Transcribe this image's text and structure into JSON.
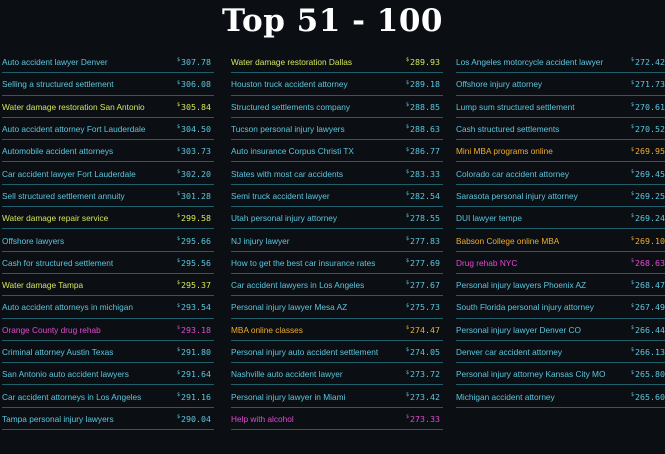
{
  "title": "Top 51 - 100",
  "colors": {
    "cyan": "#5bc7e0",
    "yellow": "#d6e65a",
    "orange": "#f0ad2b",
    "pink": "#e24ad3"
  },
  "columns": [
    [
      {
        "keyword": "Auto accident lawyer Denver",
        "price": "307.78",
        "color": "cyan"
      },
      {
        "keyword": "Selling a structured settlement",
        "price": "306.08",
        "color": "cyan"
      },
      {
        "keyword": "Water damage restoration San Antonio",
        "price": "305.84",
        "color": "yellow"
      },
      {
        "keyword": "Auto accident attorney Fort Lauderdale",
        "price": "304.50",
        "color": "cyan"
      },
      {
        "keyword": "Automobile accident attorneys",
        "price": "303.73",
        "color": "cyan"
      },
      {
        "keyword": "Car accident lawyer Fort Lauderdale",
        "price": "302.20",
        "color": "cyan"
      },
      {
        "keyword": "Sell structured settlement annuity",
        "price": "301.28",
        "color": "cyan"
      },
      {
        "keyword": "Water damage repair service",
        "price": "299.58",
        "color": "yellow"
      },
      {
        "keyword": "Offshore lawyers",
        "price": "295.66",
        "color": "cyan"
      },
      {
        "keyword": "Cash for structured settlement",
        "price": "295.56",
        "color": "cyan"
      },
      {
        "keyword": "Water damage Tampa",
        "price": "295.37",
        "color": "yellow"
      },
      {
        "keyword": "Auto accident attorneys in michigan",
        "price": "293.54",
        "color": "cyan"
      },
      {
        "keyword": "Orange County drug rehab",
        "price": "293.18",
        "color": "pink"
      },
      {
        "keyword": "Criminal attorney Austin Texas",
        "price": "291.80",
        "color": "cyan"
      },
      {
        "keyword": "San Antonio auto accident lawyers",
        "price": "291.64",
        "color": "cyan"
      },
      {
        "keyword": "Car accident attorneys in Los Angeles",
        "price": "291.16",
        "color": "cyan"
      },
      {
        "keyword": "Tampa personal injury lawyers",
        "price": "290.04",
        "color": "cyan"
      }
    ],
    [
      {
        "keyword": "Water damage restoration Dallas",
        "price": "289.93",
        "color": "yellow"
      },
      {
        "keyword": "Houston truck accident attorney",
        "price": "289.18",
        "color": "cyan"
      },
      {
        "keyword": "Structured settlements company",
        "price": "288.85",
        "color": "cyan"
      },
      {
        "keyword": "Tucson personal injury lawyers",
        "price": "288.63",
        "color": "cyan"
      },
      {
        "keyword": "Auto insurance Corpus Christi TX",
        "price": "286.77",
        "color": "cyan"
      },
      {
        "keyword": "States with most car accidents",
        "price": "283.33",
        "color": "cyan"
      },
      {
        "keyword": "Semi truck accident lawyer",
        "price": "282.54",
        "color": "cyan"
      },
      {
        "keyword": "Utah personal injury attorney",
        "price": "278.55",
        "color": "cyan"
      },
      {
        "keyword": "NJ injury lawyer",
        "price": "277.83",
        "color": "cyan"
      },
      {
        "keyword": "How to get the best car insurance rates",
        "price": "277.69",
        "color": "cyan"
      },
      {
        "keyword": "Car accident lawyers in Los Angeles",
        "price": "277.67",
        "color": "cyan"
      },
      {
        "keyword": "Personal injury lawyer Mesa AZ",
        "price": "275.73",
        "color": "cyan"
      },
      {
        "keyword": "MBA online classes",
        "price": "274.47",
        "color": "orange"
      },
      {
        "keyword": "Personal injury auto accident settlement",
        "price": "274.05",
        "color": "cyan"
      },
      {
        "keyword": "Nashville auto accident lawyer",
        "price": "273.72",
        "color": "cyan"
      },
      {
        "keyword": "Personal injury lawyer in Miami",
        "price": "273.42",
        "color": "cyan"
      },
      {
        "keyword": "Help with alcohol",
        "price": "273.33",
        "color": "pink"
      }
    ],
    [
      {
        "keyword": "Los Angeles motorcycle accident lawyer",
        "price": "272.42",
        "color": "cyan"
      },
      {
        "keyword": "Offshore injury attorney",
        "price": "271.73",
        "color": "cyan"
      },
      {
        "keyword": "Lump sum structured settlement",
        "price": "270.61",
        "color": "cyan"
      },
      {
        "keyword": "Cash structured settlements",
        "price": "270.52",
        "color": "cyan"
      },
      {
        "keyword": "Mini MBA programs online",
        "price": "269.95",
        "color": "orange"
      },
      {
        "keyword": "Colorado car accident attorney",
        "price": "269.45",
        "color": "cyan"
      },
      {
        "keyword": "Sarasota personal injury attorney",
        "price": "269.25",
        "color": "cyan"
      },
      {
        "keyword": "DUI lawyer tempe",
        "price": "269.24",
        "color": "cyan"
      },
      {
        "keyword": "Babson College online MBA",
        "price": "269.10",
        "color": "orange"
      },
      {
        "keyword": "Drug rehab NYC",
        "price": "268.63",
        "color": "pink"
      },
      {
        "keyword": "Personal injury lawyers Phoenix AZ",
        "price": "268.47",
        "color": "cyan"
      },
      {
        "keyword": "South Florida personal injury attorney",
        "price": "267.49",
        "color": "cyan"
      },
      {
        "keyword": "Personal injury lawyer Denver CO",
        "price": "266.44",
        "color": "cyan"
      },
      {
        "keyword": "Denver car accident attorney",
        "price": "266.13",
        "color": "cyan"
      },
      {
        "keyword": "Personal injury attorney Kansas City MO",
        "price": "265.80",
        "color": "cyan"
      },
      {
        "keyword": "Michigan accident attorney",
        "price": "265.60",
        "color": "cyan"
      }
    ]
  ]
}
